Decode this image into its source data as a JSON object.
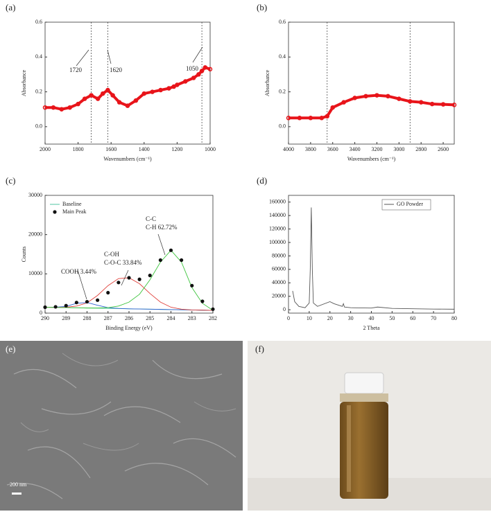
{
  "chart_data": [
    {
      "type": "line",
      "panel_label": "(a)",
      "xlabel": "Wavenumbers (cm⁻¹)",
      "ylabel": "Absorbance",
      "x": [
        2000,
        1950,
        1900,
        1850,
        1800,
        1760,
        1720,
        1680,
        1650,
        1620,
        1590,
        1550,
        1500,
        1450,
        1400,
        1350,
        1300,
        1250,
        1220,
        1200,
        1150,
        1100,
        1070,
        1050,
        1030,
        1000
      ],
      "series": [
        {
          "color": "#e8141a",
          "marker": "circle",
          "values": [
            0.11,
            0.11,
            0.1,
            0.11,
            0.13,
            0.16,
            0.18,
            0.16,
            0.19,
            0.21,
            0.18,
            0.14,
            0.12,
            0.15,
            0.19,
            0.2,
            0.21,
            0.22,
            0.23,
            0.24,
            0.26,
            0.28,
            0.3,
            0.32,
            0.34,
            0.33
          ]
        }
      ],
      "xlim": [
        2000,
        1000
      ],
      "ylim": [
        -0.1,
        0.6
      ],
      "xticks": [
        2000,
        1800,
        1600,
        1400,
        1200,
        1000
      ],
      "yticks": [
        {
          "value": 0,
          "label": "0.0"
        },
        0.2,
        0.4,
        0.6
      ],
      "vlines": [
        1720,
        1620,
        1050
      ],
      "annotations": [
        "1720",
        "1620",
        "1050"
      ]
    },
    {
      "type": "line",
      "panel_label": "(b)",
      "xlabel": "Wavenumbers (cm⁻¹)",
      "ylabel": "Absorbance",
      "x": [
        4000,
        3900,
        3800,
        3700,
        3650,
        3600,
        3500,
        3400,
        3300,
        3200,
        3100,
        3000,
        2900,
        2800,
        2700,
        2600,
        2500
      ],
      "series": [
        {
          "color": "#e8141a",
          "marker": "circle",
          "values": [
            0.05,
            0.05,
            0.05,
            0.05,
            0.06,
            0.11,
            0.14,
            0.165,
            0.175,
            0.18,
            0.175,
            0.16,
            0.145,
            0.14,
            0.13,
            0.128,
            0.125
          ]
        }
      ],
      "xlim": [
        4000,
        2500
      ],
      "ylim": [
        -0.1,
        0.6
      ],
      "xticks": [
        4000,
        3800,
        3600,
        3400,
        3200,
        3000,
        2800,
        2600
      ],
      "yticks": [
        {
          "value": 0,
          "label": "0.0"
        },
        0.2,
        0.4,
        0.6
      ],
      "vlines": [
        3650,
        2900
      ]
    },
    {
      "type": "line",
      "panel_label": "(c)",
      "xlabel": "Binding Energy (eV)",
      "ylabel": "Counts",
      "x": [
        290,
        289.5,
        289,
        288.5,
        288,
        287.5,
        287,
        286.5,
        286,
        285.5,
        285,
        284.5,
        284,
        283.5,
        283,
        282.5,
        282
      ],
      "series": [
        {
          "name": "Baseline",
          "color": "#4fc6a0",
          "values": [
            1500,
            1450,
            1400,
            1350,
            1300,
            1250,
            1200,
            1150,
            1100,
            1050,
            1000,
            950,
            900,
            850,
            800,
            750,
            700
          ]
        },
        {
          "color": "#2a5fd0",
          "values": [
            1500,
            1500,
            1700,
            2500,
            2700,
            2000,
            1400,
            1200,
            1100,
            1050,
            1000,
            950,
            900,
            850,
            800,
            750,
            700
          ]
        },
        {
          "color": "#e0403a",
          "values": [
            1500,
            1450,
            1500,
            1800,
            2600,
            4500,
            7000,
            8800,
            9000,
            7500,
            5000,
            2800,
            1500,
            1000,
            800,
            750,
            700
          ]
        },
        {
          "color": "#3cc43c",
          "values": [
            1500,
            1450,
            1400,
            1350,
            1300,
            1300,
            1400,
            1800,
            2800,
            4800,
            8500,
            13000,
            16000,
            13000,
            6500,
            2500,
            700
          ]
        },
        {
          "name": "Main Peak",
          "color": "#111111",
          "marker": "dot",
          "values": [
            1500,
            1600,
            1900,
            2700,
            2900,
            3300,
            5200,
            7800,
            9000,
            8600,
            9600,
            13500,
            16000,
            13500,
            7000,
            3000,
            1000
          ]
        }
      ],
      "xlim": [
        290,
        282
      ],
      "ylim": [
        0,
        30000
      ],
      "xticks": [
        290,
        289,
        288,
        287,
        286,
        285,
        284,
        283,
        282
      ],
      "yticks": [
        0,
        10000,
        20000,
        30000
      ],
      "legend": "upper-left",
      "annotations": [
        "COOH 3.44%",
        "C-OH",
        "C-O-C 33.84%",
        "C-C",
        "C-H 62.72%"
      ]
    },
    {
      "type": "line",
      "panel_label": "(d)",
      "xlabel": "2 Theta",
      "x": [
        2,
        3,
        5,
        8,
        10,
        10.5,
        11,
        11.5,
        12,
        14,
        20,
        22,
        26,
        26.5,
        27,
        30,
        40,
        43,
        50,
        60,
        70,
        80
      ],
      "series": [
        {
          "name": "GO Powder",
          "color": "#555555",
          "values": [
            28000,
            12000,
            5000,
            3000,
            10000,
            60000,
            152000,
            60000,
            10000,
            5000,
            12000,
            9000,
            5000,
            9000,
            4000,
            3000,
            2500,
            4000,
            2000,
            1500,
            1000,
            800
          ]
        }
      ],
      "xlim": [
        0,
        80
      ],
      "ylim": [
        -5000,
        170000
      ],
      "xticks": [
        0,
        10,
        20,
        30,
        40,
        50,
        60,
        70,
        80
      ],
      "yticks": [
        0,
        20000,
        40000,
        60000,
        80000,
        100000,
        120000,
        140000,
        160000
      ],
      "legend": "upper-right"
    }
  ],
  "images": [
    {
      "panel_label": "(e)",
      "scale_bar": "200 nm"
    },
    {
      "panel_label": "(f)"
    }
  ]
}
